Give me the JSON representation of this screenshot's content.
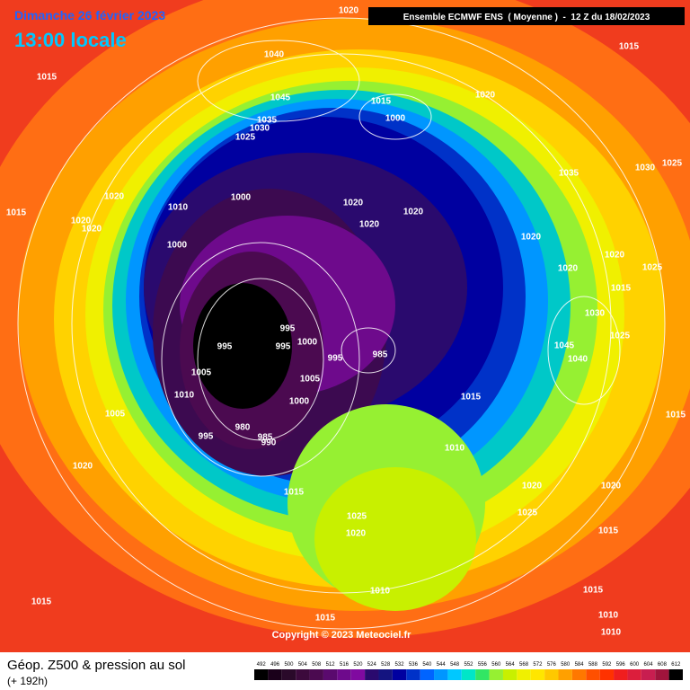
{
  "header": {
    "date": "Dimanche 26 février 2023",
    "time": "13:00 locale",
    "model": "Ensemble ECMWF ENS  ( Moyenne )  -  12 Z du 18/02/2023"
  },
  "footer": {
    "title": "Géop. Z500 & pression au sol",
    "lead": "(+ 192h)",
    "copyright": "Copyright © 2023 Meteociel.fr"
  },
  "colorbar": {
    "values": [
      492,
      496,
      500,
      504,
      508,
      512,
      516,
      520,
      524,
      528,
      532,
      536,
      540,
      544,
      548,
      552,
      556,
      560,
      564,
      568,
      572,
      576,
      580,
      584,
      588,
      592,
      596,
      600,
      604,
      608,
      612
    ]
  },
  "isobar_labels": [
    1020,
    1015,
    1040,
    1045,
    1035,
    1030,
    1025,
    1015,
    1000,
    1020,
    1015,
    1020,
    1015,
    1020,
    1020,
    1010,
    1000,
    1020,
    1020,
    1020,
    1000,
    1035,
    1030,
    1025,
    1020,
    1020,
    1020,
    1025,
    1015,
    1030,
    995,
    995,
    995,
    1000,
    985,
    995,
    1005,
    1010,
    1005,
    1000,
    1005,
    995,
    980,
    985,
    990,
    1015,
    1010,
    1045,
    1040,
    1025,
    1015,
    1020,
    1015,
    1025,
    1020,
    1020,
    1020,
    1025,
    1015,
    1010,
    1015,
    1015,
    1015,
    1010,
    1010
  ]
}
